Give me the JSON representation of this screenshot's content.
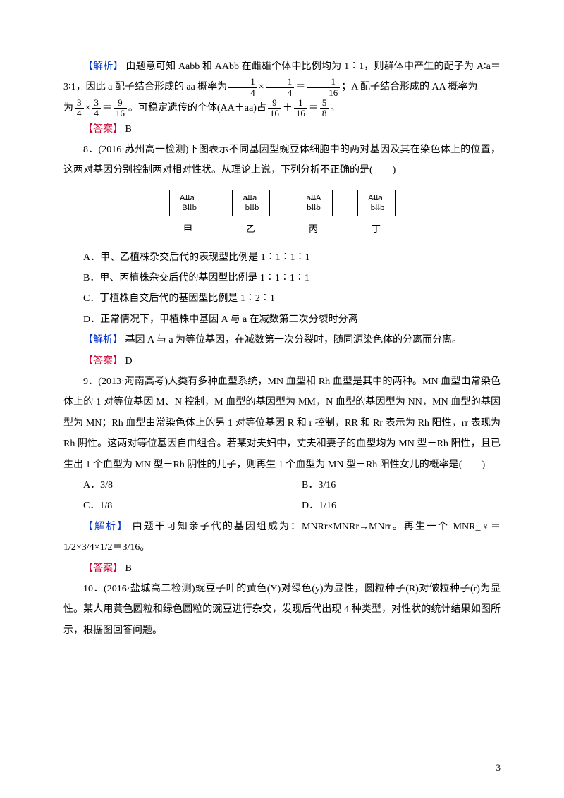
{
  "colors": {
    "blue": "#0033cc",
    "red": "#cc0033",
    "text": "#000000",
    "background": "#ffffff"
  },
  "typography": {
    "body_font": "SimSun",
    "font_size": 14,
    "line_height": 2.1
  },
  "q7_analysis": {
    "label": "【解析】",
    "text1": "由题意可知 Aabb 和 AAbb 在雌雄个体中比例均为 1∶1，则群体中产生的配子为 A∶a＝3∶1，因此 a 配子结合形成的 aa 概率为",
    "frac1_num": "1",
    "frac1_den": "4",
    "mult1": "×",
    "frac2_num": "1",
    "frac2_den": "4",
    "eq1": "＝",
    "frac3_num": "1",
    "frac3_den": "16",
    "text2": "；A 配子结合形成的 AA 概率为",
    "frac4_num": "3",
    "frac4_den": "4",
    "mult2": "×",
    "frac5_num": "3",
    "frac5_den": "4",
    "eq2": "＝",
    "frac6_num": "9",
    "frac6_den": "16",
    "text3": "。可稳定遗传的个体(AA＋aa)占",
    "frac7_num": "9",
    "frac7_den": "16",
    "plus": "＋",
    "frac8_num": "1",
    "frac8_den": "16",
    "eq3": "＝",
    "frac9_num": "5",
    "frac9_den": "8",
    "text4": "。"
  },
  "q7_answer": {
    "label": "【答案】",
    "value": "B"
  },
  "q8": {
    "stem": "8．(2016·苏州高一检测)下图表示不同基因型豌豆体细胞中的两对基因及其在染色体上的位置，这两对基因分别控制两对相对性状。从理论上说，下列分析不正确的是(　　)",
    "diagrams": [
      {
        "box_line1": "A⇊a",
        "box_line2": "B⇊b",
        "label": "甲"
      },
      {
        "box_line1": "a⇊a",
        "box_line2": "b⇊b",
        "label": "乙"
      },
      {
        "box_line1": "a⇊A",
        "box_line2": "b⇊b",
        "label": "丙"
      },
      {
        "box_line1": "A⇊a",
        "box_line2": "b⇊b",
        "label": "丁"
      }
    ],
    "optA": "A．甲、乙植株杂交后代的表现型比例是 1∶1∶1∶1",
    "optB": "B．甲、丙植株杂交后代的基因型比例是 1∶1∶1∶1",
    "optC": "C．丁植株自交后代的基因型比例是 1∶2∶1",
    "optD": "D．正常情况下，甲植株中基因 A 与 a 在减数第二次分裂时分离",
    "analysis_label": "【解析】",
    "analysis": "基因 A 与 a 为等位基因，在减数第一次分裂时，随同源染色体的分离而分离。",
    "answer_label": "【答案】",
    "answer": "D"
  },
  "q9": {
    "stem": "9．(2013·海南高考)人类有多种血型系统，MN 血型和 Rh 血型是其中的两种。MN 血型由常染色体上的 1 对等位基因 M、N 控制，M 血型的基因型为 MM，N 血型的基因型为 NN，MN 血型的基因型为 MN；Rh 血型由常染色体上的另 1 对等位基因 R 和 r 控制，RR 和 Rr 表示为 Rh 阳性，rr 表现为 Rh 阴性。这两对等位基因自由组合。若某对夫妇中，丈夫和妻子的血型均为 MN 型－Rh 阳性，且已生出 1 个血型为 MN 型－Rh 阴性的儿子，则再生 1 个血型为 MN 型－Rh 阳性女儿的概率是(　　)",
    "optA": "A．3/8",
    "optB": "B．3/16",
    "optC": "C．1/8",
    "optD": "D．1/16",
    "analysis_label": "【解析】",
    "analysis": "由题干可知亲子代的基因组成为：MNRr×MNRr→MNrr。再生一个 MNR_♀＝1/2×3/4×1/2＝3/16。",
    "answer_label": "【答案】",
    "answer": "B"
  },
  "q10": {
    "stem": "10．(2016·盐城高二检测)豌豆子叶的黄色(Y)对绿色(y)为显性，圆粒种子(R)对皱粒种子(r)为显性。某人用黄色圆粒和绿色圆粒的豌豆进行杂交，发现后代出现 4 种类型，对性状的统计结果如图所示，根据图回答问题。"
  },
  "page_number": "3"
}
